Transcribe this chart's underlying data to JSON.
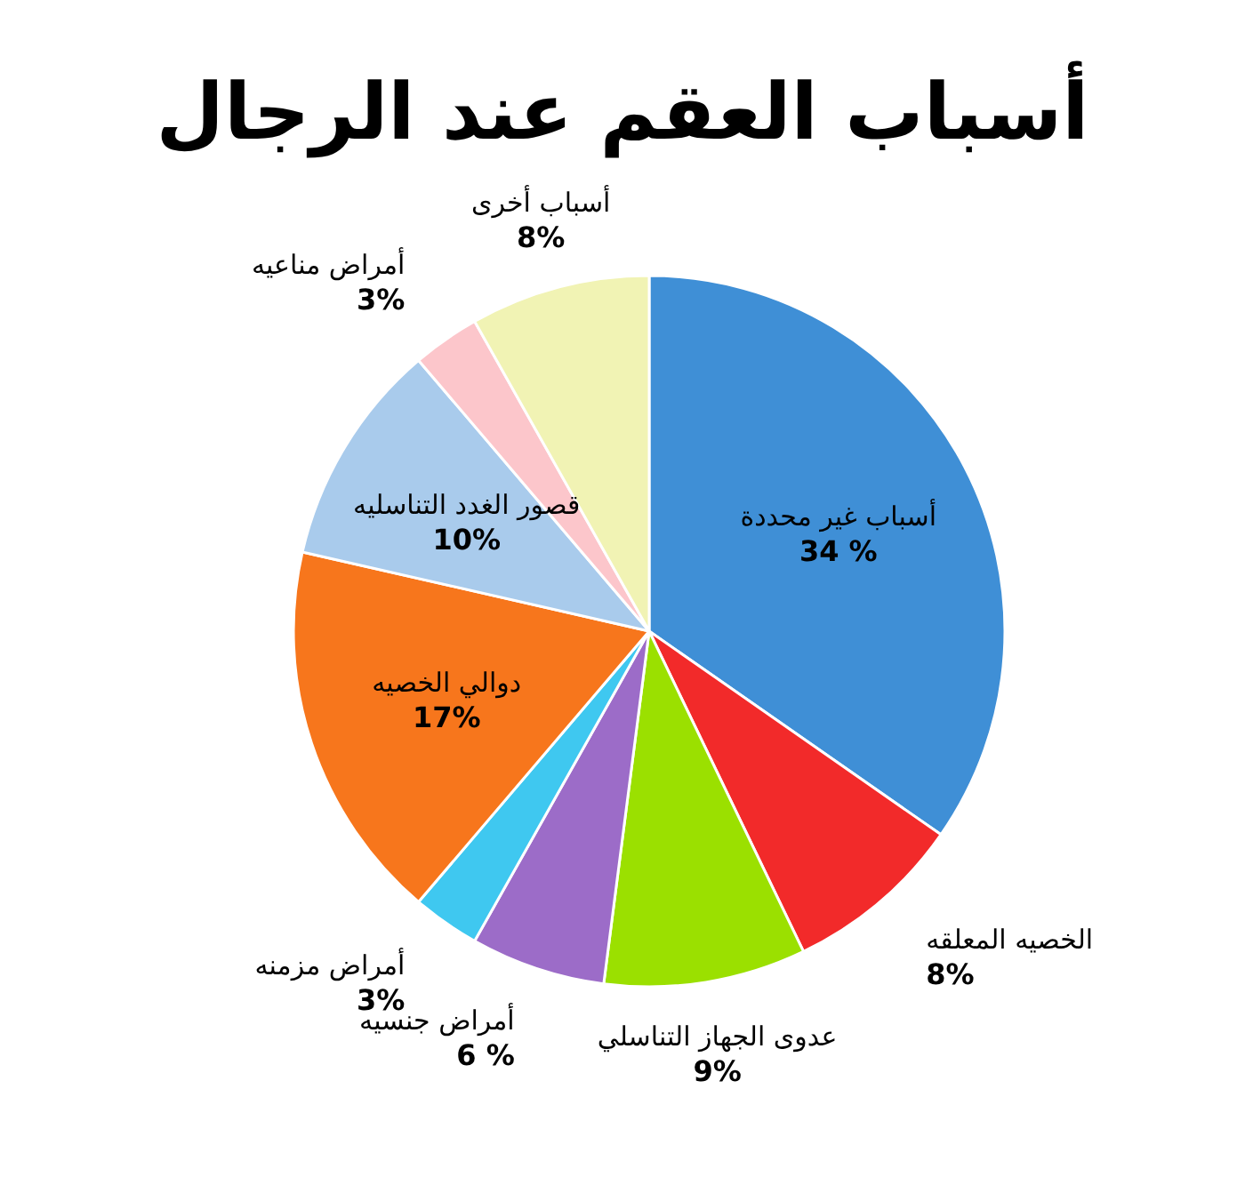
{
  "chart_data": {
    "type": "pie",
    "title": "أسباب العقم عند الرجال",
    "categories": [
      "أسباب غير محددة",
      "الخصيه المعلقه",
      "عدوى الجهاز التناسلي",
      "أمراض جنسيه",
      "أمراض مزمنه",
      "دوالي الخصيه",
      "قصور الغدد التناسليه",
      "أمراض مناعيه",
      "أسباب أخرى"
    ],
    "values": [
      34,
      8,
      9,
      6,
      3,
      17,
      10,
      3,
      8
    ],
    "value_labels": [
      "34 %",
      "8%",
      "9%",
      "6 %",
      "3%",
      "17%",
      "10%",
      "3%",
      "8%"
    ],
    "colors": [
      "#3f8fd6",
      "#f22a2a",
      "#9be000",
      "#9c6cc8",
      "#3fc8f0",
      "#f7761c",
      "#a9cbec",
      "#fcc6cb",
      "#f1f3b4"
    ]
  }
}
